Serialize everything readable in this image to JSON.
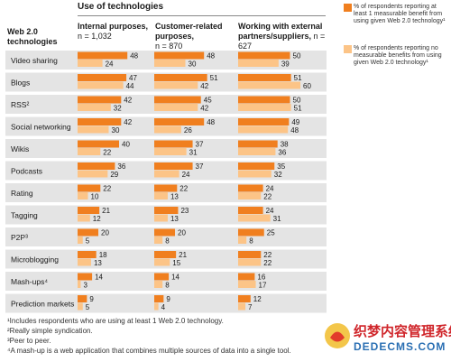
{
  "header": {
    "use_label": "Use of technologies",
    "row_label": "Web 2.0 technologies"
  },
  "columns": [
    {
      "title": "Internal purposes,",
      "n": "n = 1,032"
    },
    {
      "title": "Customer-related purposes,",
      "n": "n = 870"
    },
    {
      "title": "Working with external partners/suppliers,",
      "n": "n = 627"
    }
  ],
  "legend": [
    {
      "text": "% of respondents reporting at least 1 measurable benefit from using given Web 2.0 technology¹",
      "color": "#f07f1f"
    },
    {
      "text": "% of respondents reporting no measurable benefits from using given Web 2.0 technology¹",
      "color": "#fcc487"
    }
  ],
  "footnotes": [
    "¹Includes respondents who are using at least 1 Web 2.0 technology.",
    "²Really simple syndication.",
    "³Peer to peer.",
    "⁴A mash-up is a web application that combines multiple sources of data into a single tool."
  ],
  "watermark": {
    "text_cn": "织梦内容管理系统",
    "text_en": "DEDECMS.COM"
  },
  "chart_data": {
    "type": "bar",
    "orientation": "horizontal",
    "categories": [
      "Video sharing",
      "Blogs",
      "RSS²",
      "Social networking",
      "Wikis",
      "Podcasts",
      "Rating",
      "Tagging",
      "P2P³",
      "Microblogging",
      "Mash-ups⁴",
      "Prediction markets"
    ],
    "panels": [
      {
        "name": "Internal purposes, n = 1,032",
        "series": [
          {
            "name": "% of respondents reporting at least 1 measurable benefit from using given Web 2.0 technology",
            "values": [
              48,
              47,
              42,
              42,
              40,
              36,
              22,
              21,
              20,
              18,
              14,
              9
            ]
          },
          {
            "name": "% of respondents reporting no measurable benefits from using given Web 2.0 technology",
            "values": [
              24,
              44,
              32,
              30,
              22,
              29,
              10,
              12,
              5,
              13,
              3,
              5
            ]
          }
        ]
      },
      {
        "name": "Customer-related purposes, n = 870",
        "series": [
          {
            "name": "% of respondents reporting at least 1 measurable benefit from using given Web 2.0 technology",
            "values": [
              48,
              51,
              45,
              48,
              37,
              37,
              22,
              23,
              20,
              21,
              14,
              9
            ]
          },
          {
            "name": "% of respondents reporting no measurable benefits from using given Web 2.0 technology",
            "values": [
              30,
              42,
              42,
              26,
              31,
              24,
              13,
              13,
              8,
              15,
              8,
              4
            ]
          }
        ]
      },
      {
        "name": "Working with external partners/suppliers, n = 627",
        "series": [
          {
            "name": "% of respondents reporting at least 1 measurable benefit from using given Web 2.0 technology",
            "values": [
              50,
              51,
              50,
              49,
              38,
              35,
              24,
              24,
              25,
              22,
              16,
              12
            ]
          },
          {
            "name": "% of respondents reporting no measurable benefits from using given Web 2.0 technology",
            "values": [
              39,
              60,
              51,
              48,
              36,
              32,
              22,
              31,
              8,
              22,
              17,
              7
            ]
          }
        ]
      }
    ],
    "colors": {
      "benefit": "#f07f1f",
      "no_benefit": "#fcc487",
      "row_band": "#e4e4e4"
    },
    "grid": false,
    "legend_position": "top-right"
  }
}
